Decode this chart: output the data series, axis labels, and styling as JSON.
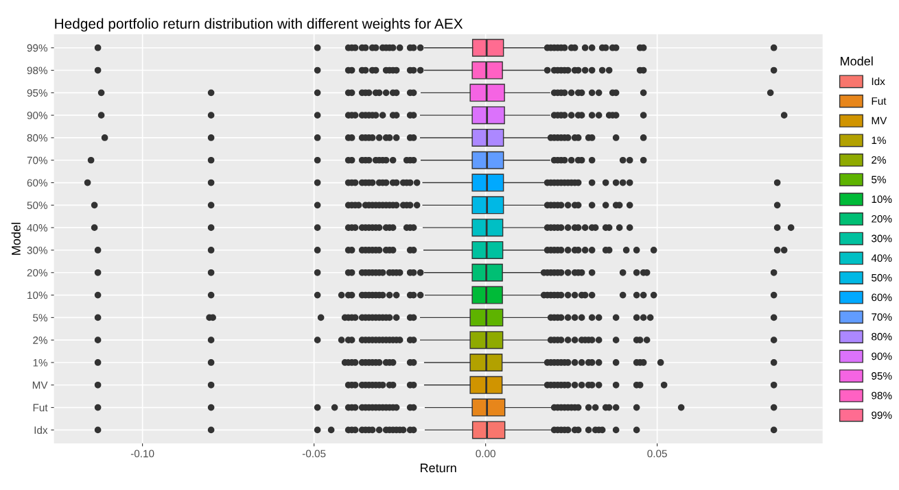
{
  "chart_data": {
    "type": "box",
    "orientation": "horizontal",
    "title": "Hedged portfolio return distribution with different weights for AEX",
    "xlabel": "Return",
    "ylabel": "Model",
    "legend_title": "Model",
    "legend": "right",
    "grid": true,
    "categories": [
      "99%",
      "98%",
      "95%",
      "90%",
      "80%",
      "70%",
      "60%",
      "50%",
      "40%",
      "30%",
      "20%",
      "10%",
      "5%",
      "2%",
      "1%",
      "MV",
      "Fut",
      "Idx"
    ],
    "xlim": [
      -0.1258,
      0.0982
    ],
    "xticks": [
      {
        "value": -0.1,
        "label": "-0.10"
      },
      {
        "value": -0.05,
        "label": "-0.05"
      },
      {
        "value": 0.0,
        "label": "0.00"
      },
      {
        "value": 0.05,
        "label": "0.05"
      }
    ],
    "series": [
      {
        "name": "99%",
        "color": "#FF6C91",
        "boxes": [
          {
            "low": -0.0178,
            "q1": -0.0038,
            "median": 0.0003,
            "q3": 0.0052,
            "high": 0.0178,
            "outliers": [
              -0.113,
              -0.049,
              -0.04,
              -0.039,
              -0.038,
              -0.036,
              -0.035,
              -0.033,
              -0.032,
              -0.03,
              -0.029,
              -0.028,
              -0.027,
              -0.025,
              -0.022,
              -0.021,
              -0.019,
              0.018,
              0.019,
              0.02,
              0.021,
              0.022,
              0.023,
              0.025,
              0.026,
              0.029,
              0.031,
              0.034,
              0.035,
              0.037,
              0.038,
              0.045,
              0.046,
              0.084
            ]
          },
          null,
          null,
          null,
          null,
          null,
          null,
          null,
          null,
          null,
          null,
          null,
          null,
          null,
          null,
          null,
          null,
          null
        ]
      },
      {
        "name": "98%",
        "color": "#FF61C3",
        "boxes": [
          null,
          {
            "low": -0.0178,
            "q1": -0.0039,
            "median": 0.0002,
            "q3": 0.0049,
            "high": 0.0186,
            "outliers": [
              -0.113,
              -0.049,
              -0.04,
              -0.039,
              -0.036,
              -0.035,
              -0.033,
              -0.032,
              -0.029,
              -0.028,
              -0.027,
              -0.026,
              -0.022,
              -0.021,
              -0.019,
              0.018,
              0.02,
              0.021,
              0.022,
              0.023,
              0.024,
              0.026,
              0.027,
              0.029,
              0.031,
              0.034,
              0.036,
              0.045,
              0.046,
              0.084
            ]
          },
          null,
          null,
          null,
          null,
          null,
          null,
          null,
          null,
          null,
          null,
          null,
          null,
          null,
          null,
          null,
          null
        ]
      },
      {
        "name": "95%",
        "color": "#F564E3",
        "boxes": [
          null,
          null,
          {
            "low": -0.0188,
            "q1": -0.0045,
            "median": 0.0003,
            "q3": 0.0055,
            "high": 0.0187,
            "outliers": [
              -0.112,
              -0.08,
              -0.049,
              -0.04,
              -0.039,
              -0.036,
              -0.035,
              -0.034,
              -0.032,
              -0.031,
              -0.029,
              -0.027,
              -0.026,
              -0.022,
              -0.021,
              0.02,
              0.021,
              0.022,
              0.023,
              0.025,
              0.027,
              0.028,
              0.031,
              0.033,
              0.037,
              0.038,
              0.046,
              0.083
            ]
          },
          null,
          null,
          null,
          null,
          null,
          null,
          null,
          null,
          null,
          null,
          null,
          null,
          null,
          null,
          null
        ]
      },
      {
        "name": "90%",
        "color": "#DB72FB",
        "boxes": [
          null,
          null,
          null,
          {
            "low": -0.019,
            "q1": -0.0039,
            "median": 0.0004,
            "q3": 0.0055,
            "high": 0.0187,
            "outliers": [
              -0.112,
              -0.08,
              -0.049,
              -0.04,
              -0.039,
              -0.038,
              -0.036,
              -0.035,
              -0.034,
              -0.033,
              -0.032,
              -0.03,
              -0.027,
              -0.026,
              -0.022,
              -0.021,
              0.02,
              0.021,
              0.022,
              0.023,
              0.025,
              0.027,
              0.028,
              0.031,
              0.033,
              0.036,
              0.037,
              0.038,
              0.046,
              0.087
            ]
          },
          null,
          null,
          null,
          null,
          null,
          null,
          null,
          null,
          null,
          null,
          null,
          null,
          null,
          null
        ]
      },
      {
        "name": "80%",
        "color": "#AC88FF",
        "boxes": [
          null,
          null,
          null,
          null,
          {
            "low": -0.019,
            "q1": -0.0039,
            "median": 0.0004,
            "q3": 0.0052,
            "high": 0.0184,
            "outliers": [
              -0.111,
              -0.08,
              -0.049,
              -0.04,
              -0.039,
              -0.036,
              -0.035,
              -0.034,
              -0.033,
              -0.031,
              -0.029,
              -0.028,
              -0.026,
              -0.022,
              -0.021,
              0.019,
              0.02,
              0.021,
              0.022,
              0.023,
              0.024,
              0.026,
              0.027,
              0.03,
              0.031,
              0.038,
              0.046
            ]
          },
          null,
          null,
          null,
          null,
          null,
          null,
          null,
          null,
          null,
          null,
          null,
          null,
          null
        ]
      },
      {
        "name": "70%",
        "color": "#619CFF",
        "boxes": [
          null,
          null,
          null,
          null,
          null,
          {
            "low": -0.0188,
            "q1": -0.0039,
            "median": 0.0004,
            "q3": 0.0052,
            "high": 0.0187,
            "outliers": [
              -0.115,
              -0.08,
              -0.049,
              -0.04,
              -0.039,
              -0.036,
              -0.035,
              -0.034,
              -0.032,
              -0.031,
              -0.03,
              -0.029,
              -0.027,
              -0.023,
              -0.022,
              -0.021,
              0.02,
              0.021,
              0.022,
              0.023,
              0.025,
              0.027,
              0.028,
              0.031,
              0.04,
              0.042,
              0.046
            ]
          },
          null,
          null,
          null,
          null,
          null,
          null,
          null,
          null,
          null,
          null,
          null,
          null
        ]
      },
      {
        "name": "60%",
        "color": "#00A9FF",
        "boxes": [
          null,
          null,
          null,
          null,
          null,
          null,
          {
            "low": -0.0183,
            "q1": -0.0039,
            "median": 0.0004,
            "q3": 0.0052,
            "high": 0.018,
            "outliers": [
              -0.116,
              -0.08,
              -0.049,
              -0.04,
              -0.039,
              -0.038,
              -0.036,
              -0.035,
              -0.034,
              -0.033,
              -0.031,
              -0.03,
              -0.029,
              -0.027,
              -0.026,
              -0.024,
              -0.023,
              -0.022,
              -0.02,
              0.018,
              0.019,
              0.02,
              0.021,
              0.022,
              0.023,
              0.024,
              0.025,
              0.026,
              0.027,
              0.031,
              0.035,
              0.038,
              0.04,
              0.042,
              0.085
            ]
          },
          null,
          null,
          null,
          null,
          null,
          null,
          null,
          null,
          null,
          null,
          null
        ]
      },
      {
        "name": "50%",
        "color": "#00B8E5",
        "boxes": [
          null,
          null,
          null,
          null,
          null,
          null,
          null,
          {
            "low": -0.0183,
            "q1": -0.0039,
            "median": 0.0004,
            "q3": 0.0052,
            "high": 0.018,
            "outliers": [
              -0.114,
              -0.08,
              -0.049,
              -0.04,
              -0.039,
              -0.038,
              -0.037,
              -0.035,
              -0.034,
              -0.033,
              -0.032,
              -0.031,
              -0.03,
              -0.029,
              -0.028,
              -0.027,
              -0.026,
              -0.024,
              -0.023,
              -0.022,
              -0.02,
              0.018,
              0.019,
              0.02,
              0.021,
              0.022,
              0.024,
              0.026,
              0.027,
              0.031,
              0.035,
              0.038,
              0.039,
              0.042,
              0.085
            ]
          },
          null,
          null,
          null,
          null,
          null,
          null,
          null,
          null,
          null,
          null
        ]
      },
      {
        "name": "40%",
        "color": "#00BFC4",
        "boxes": [
          null,
          null,
          null,
          null,
          null,
          null,
          null,
          null,
          {
            "low": -0.0182,
            "q1": -0.0039,
            "median": 0.0003,
            "q3": 0.005,
            "high": 0.018,
            "outliers": [
              -0.114,
              -0.08,
              -0.049,
              -0.04,
              -0.039,
              -0.038,
              -0.036,
              -0.035,
              -0.034,
              -0.033,
              -0.032,
              -0.031,
              -0.029,
              -0.028,
              -0.027,
              -0.023,
              -0.022,
              -0.021,
              0.018,
              0.019,
              0.02,
              0.021,
              0.022,
              0.024,
              0.026,
              0.027,
              0.029,
              0.031,
              0.032,
              0.035,
              0.036,
              0.039,
              0.042,
              0.085,
              0.089
            ]
          },
          null,
          null,
          null,
          null,
          null,
          null,
          null,
          null,
          null
        ]
      },
      {
        "name": "30%",
        "color": "#00C19F",
        "boxes": [
          null,
          null,
          null,
          null,
          null,
          null,
          null,
          null,
          null,
          {
            "low": -0.018,
            "q1": -0.0039,
            "median": 0.0003,
            "q3": 0.005,
            "high": 0.018,
            "outliers": [
              -0.113,
              -0.08,
              -0.049,
              -0.04,
              -0.039,
              -0.036,
              -0.035,
              -0.034,
              -0.033,
              -0.032,
              -0.031,
              -0.029,
              -0.028,
              -0.027,
              -0.022,
              -0.021,
              0.018,
              0.019,
              0.02,
              0.021,
              0.022,
              0.024,
              0.026,
              0.027,
              0.029,
              0.031,
              0.035,
              0.036,
              0.041,
              0.044,
              0.049,
              0.085,
              0.087
            ]
          },
          null,
          null,
          null,
          null,
          null,
          null,
          null,
          null
        ]
      },
      {
        "name": "20%",
        "color": "#00BF74",
        "boxes": [
          null,
          null,
          null,
          null,
          null,
          null,
          null,
          null,
          null,
          null,
          {
            "low": -0.0178,
            "q1": -0.0039,
            "median": 0.0002,
            "q3": 0.0049,
            "high": 0.0172,
            "outliers": [
              -0.113,
              -0.08,
              -0.049,
              -0.04,
              -0.039,
              -0.036,
              -0.035,
              -0.034,
              -0.033,
              -0.032,
              -0.031,
              -0.03,
              -0.028,
              -0.027,
              -0.026,
              -0.025,
              -0.022,
              -0.021,
              -0.019,
              0.017,
              0.018,
              0.019,
              0.02,
              0.021,
              0.022,
              0.024,
              0.026,
              0.027,
              0.028,
              0.031,
              0.04,
              0.044,
              0.046,
              0.047,
              0.084
            ]
          },
          null,
          null,
          null,
          null,
          null,
          null,
          null
        ]
      },
      {
        "name": "10%",
        "color": "#00BA38",
        "boxes": [
          null,
          null,
          null,
          null,
          null,
          null,
          null,
          null,
          null,
          null,
          null,
          {
            "low": -0.0176,
            "q1": -0.0039,
            "median": 0.0002,
            "q3": 0.0049,
            "high": 0.0172,
            "outliers": [
              -0.113,
              -0.08,
              -0.049,
              -0.042,
              -0.04,
              -0.039,
              -0.036,
              -0.035,
              -0.034,
              -0.033,
              -0.032,
              -0.031,
              -0.03,
              -0.028,
              -0.026,
              -0.022,
              -0.021,
              -0.019,
              0.017,
              0.018,
              0.019,
              0.02,
              0.021,
              0.022,
              0.024,
              0.026,
              0.028,
              0.029,
              0.031,
              0.04,
              0.044,
              0.046,
              0.049,
              0.084
            ]
          },
          null,
          null,
          null,
          null,
          null,
          null
        ]
      },
      {
        "name": "5%",
        "color": "#5EB300",
        "boxes": [
          null,
          null,
          null,
          null,
          null,
          null,
          null,
          null,
          null,
          null,
          null,
          null,
          {
            "low": -0.019,
            "q1": -0.0045,
            "median": 0.0002,
            "q3": 0.005,
            "high": 0.0187,
            "outliers": [
              -0.113,
              -0.0805,
              -0.0795,
              -0.048,
              -0.041,
              -0.04,
              -0.039,
              -0.038,
              -0.036,
              -0.035,
              -0.034,
              -0.033,
              -0.032,
              -0.031,
              -0.03,
              -0.029,
              -0.028,
              -0.026,
              -0.022,
              -0.021,
              0.019,
              0.02,
              0.021,
              0.022,
              0.024,
              0.026,
              0.028,
              0.031,
              0.033,
              0.038,
              0.044,
              0.046,
              0.048,
              0.084
            ]
          },
          null,
          null,
          null,
          null,
          null
        ]
      },
      {
        "name": "2%",
        "color": "#8FAA00",
        "boxes": [
          null,
          null,
          null,
          null,
          null,
          null,
          null,
          null,
          null,
          null,
          null,
          null,
          null,
          {
            "low": -0.019,
            "q1": -0.0045,
            "median": 0.0002,
            "q3": 0.005,
            "high": 0.0187,
            "outliers": [
              -0.113,
              -0.08,
              -0.049,
              -0.042,
              -0.04,
              -0.039,
              -0.036,
              -0.035,
              -0.034,
              -0.033,
              -0.032,
              -0.031,
              -0.03,
              -0.029,
              -0.028,
              -0.027,
              -0.026,
              -0.025,
              -0.022,
              -0.021,
              0.019,
              0.02,
              0.021,
              0.022,
              0.024,
              0.026,
              0.028,
              0.029,
              0.03,
              0.031,
              0.033,
              0.038,
              0.044,
              0.045,
              0.047,
              0.084
            ]
          },
          null,
          null,
          null,
          null
        ]
      },
      {
        "name": "1%",
        "color": "#B2A100",
        "boxes": [
          null,
          null,
          null,
          null,
          null,
          null,
          null,
          null,
          null,
          null,
          null,
          null,
          null,
          null,
          {
            "low": -0.0178,
            "q1": -0.0045,
            "median": 0.0002,
            "q3": 0.0048,
            "high": 0.0178,
            "outliers": [
              -0.113,
              -0.08,
              -0.041,
              -0.04,
              -0.039,
              -0.038,
              -0.036,
              -0.035,
              -0.034,
              -0.033,
              -0.032,
              -0.031,
              -0.029,
              -0.028,
              -0.027,
              -0.022,
              -0.021,
              0.018,
              0.019,
              0.02,
              0.021,
              0.022,
              0.023,
              0.024,
              0.026,
              0.028,
              0.03,
              0.031,
              0.033,
              0.038,
              0.044,
              0.045,
              0.046,
              0.051,
              0.084
            ]
          },
          null,
          null,
          null
        ]
      },
      {
        "name": "MV",
        "color": "#D09400",
        "boxes": [
          null,
          null,
          null,
          null,
          null,
          null,
          null,
          null,
          null,
          null,
          null,
          null,
          null,
          null,
          null,
          {
            "low": -0.0178,
            "q1": -0.0045,
            "median": 0.0002,
            "q3": 0.0048,
            "high": 0.0178,
            "outliers": [
              -0.113,
              -0.08,
              -0.04,
              -0.039,
              -0.038,
              -0.036,
              -0.035,
              -0.034,
              -0.033,
              -0.032,
              -0.031,
              -0.03,
              -0.028,
              -0.027,
              -0.022,
              -0.021,
              0.018,
              0.019,
              0.02,
              0.021,
              0.022,
              0.023,
              0.024,
              0.026,
              0.028,
              0.03,
              0.031,
              0.033,
              0.038,
              0.044,
              0.045,
              0.052,
              0.084
            ]
          },
          null,
          null
        ]
      },
      {
        "name": "Fut",
        "color": "#E7861B",
        "boxes": [
          null,
          null,
          null,
          null,
          null,
          null,
          null,
          null,
          null,
          null,
          null,
          null,
          null,
          null,
          null,
          null,
          {
            "low": -0.0176,
            "q1": -0.0039,
            "median": 0.0004,
            "q3": 0.0056,
            "high": 0.0194,
            "outliers": [
              -0.113,
              -0.08,
              -0.049,
              -0.044,
              -0.04,
              -0.039,
              -0.038,
              -0.036,
              -0.035,
              -0.034,
              -0.033,
              -0.032,
              -0.031,
              -0.03,
              -0.029,
              -0.028,
              -0.027,
              -0.026,
              -0.022,
              -0.021,
              0.02,
              0.021,
              0.022,
              0.023,
              0.024,
              0.025,
              0.026,
              0.027,
              0.03,
              0.032,
              0.035,
              0.036,
              0.038,
              0.044,
              0.057,
              0.084
            ]
          },
          null
        ]
      },
      {
        "name": "Idx",
        "color": "#F8766D",
        "boxes": [
          null,
          null,
          null,
          null,
          null,
          null,
          null,
          null,
          null,
          null,
          null,
          null,
          null,
          null,
          null,
          null,
          null,
          {
            "low": -0.0176,
            "q1": -0.0038,
            "median": 0.0004,
            "q3": 0.0056,
            "high": 0.0194,
            "outliers": [
              -0.113,
              -0.08,
              -0.049,
              -0.045,
              -0.04,
              -0.039,
              -0.038,
              -0.036,
              -0.035,
              -0.034,
              -0.033,
              -0.031,
              -0.029,
              -0.028,
              -0.027,
              -0.026,
              -0.025,
              -0.024,
              -0.022,
              -0.021,
              0.02,
              0.021,
              0.022,
              0.023,
              0.024,
              0.026,
              0.027,
              0.03,
              0.032,
              0.033,
              0.034,
              0.038,
              0.044,
              0.084
            ]
          }
        ]
      }
    ]
  }
}
